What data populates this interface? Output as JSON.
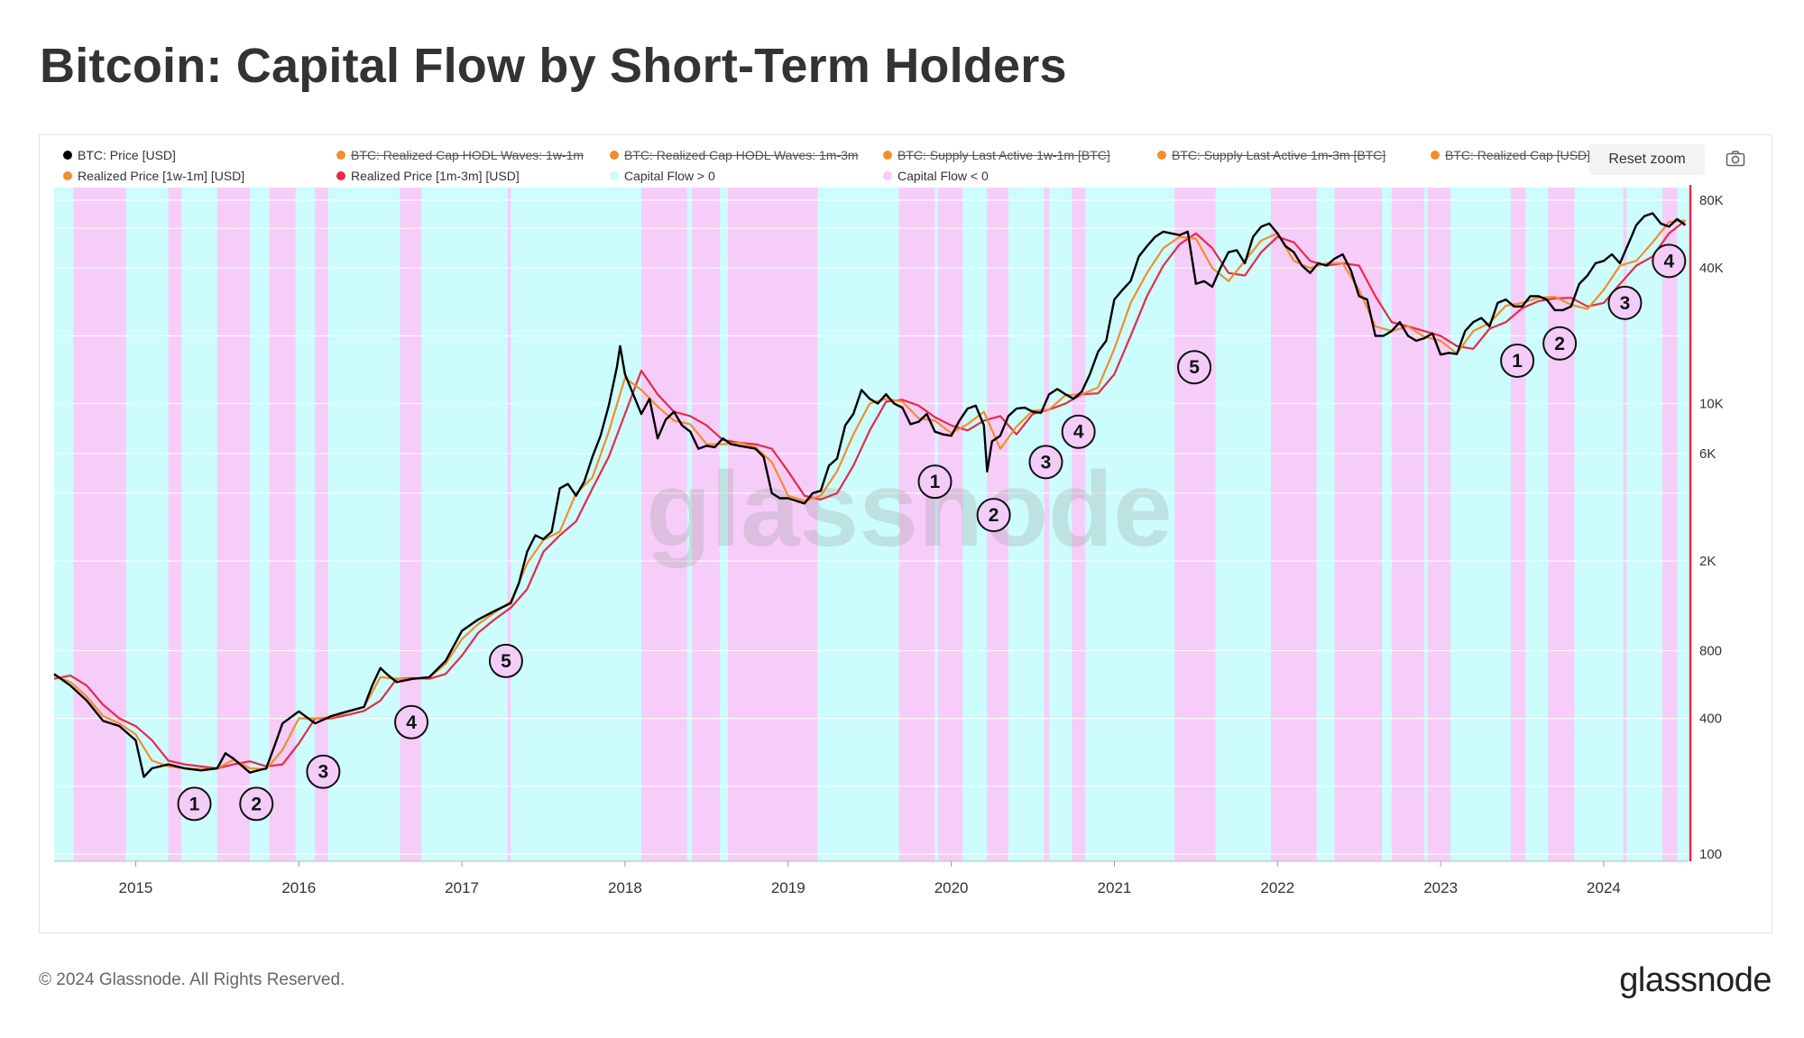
{
  "title": "Bitcoin: Capital Flow by Short-Term Holders",
  "toolbar": {
    "reset_zoom": "Reset zoom",
    "camera_icon": "camera-icon"
  },
  "legend": [
    {
      "label": "BTC: Price [USD]",
      "color": "#000000",
      "active": true
    },
    {
      "label": "BTC: Realized Cap HODL Waves: 1w-1m",
      "color": "#f28e2b",
      "active": false
    },
    {
      "label": "BTC: Realized Cap HODL Waves: 1m-3m",
      "color": "#f28e2b",
      "active": false
    },
    {
      "label": "BTC: Supply Last Active 1w-1m [BTC]",
      "color": "#f28e2b",
      "active": false
    },
    {
      "label": "BTC: Supply Last Active 1m-3m [BTC]",
      "color": "#f28e2b",
      "active": false
    },
    {
      "label": "BTC: Realized Cap [USD]",
      "color": "#f28e2b",
      "active": false
    },
    {
      "label": "Realized Price [1w-1m] [USD]",
      "color": "#f28e2b",
      "active": true
    },
    {
      "label": "Realized Price [1m-3m] [USD]",
      "color": "#e8294a",
      "active": true
    },
    {
      "label": "Capital Flow > 0",
      "color": "#ccfbfb",
      "active": true
    },
    {
      "label": "Capital Flow < 0",
      "color": "#f6ccf8",
      "active": true
    }
  ],
  "watermark": "glassnode",
  "footer": {
    "copyright": "© 2024 Glassnode. All Rights Reserved.",
    "brand": "glassnode"
  },
  "chart_data": {
    "type": "line",
    "title": "Bitcoin: Capital Flow by Short-Term Holders",
    "xlabel": "",
    "ylabel": "",
    "yscale": "log",
    "xlim": [
      2014.5,
      2024.52
    ],
    "ylim": [
      100,
      100000
    ],
    "x_ticks": [
      2015,
      2016,
      2017,
      2018,
      2019,
      2020,
      2021,
      2022,
      2023,
      2024
    ],
    "x_tick_labels": [
      "2015",
      "2016",
      "2017",
      "2018",
      "2019",
      "2020",
      "2021",
      "2022",
      "2023",
      "2024"
    ],
    "y_ticks": [
      100,
      400,
      800,
      2000,
      6000,
      10000,
      40000,
      80000
    ],
    "y_tick_labels": [
      "100",
      "400",
      "800",
      "2K",
      "6K",
      "10K",
      "40K",
      "80K"
    ],
    "series": [
      {
        "name": "BTC: Price [USD]",
        "color": "#000000",
        "x": [
          2014.5,
          2014.6,
          2014.7,
          2014.8,
          2014.9,
          2015.0,
          2015.05,
          2015.1,
          2015.2,
          2015.3,
          2015.4,
          2015.5,
          2015.55,
          2015.6,
          2015.7,
          2015.8,
          2015.85,
          2015.9,
          2016.0,
          2016.1,
          2016.2,
          2016.3,
          2016.4,
          2016.45,
          2016.5,
          2016.55,
          2016.6,
          2016.7,
          2016.8,
          2016.9,
          2017.0,
          2017.1,
          2017.2,
          2017.3,
          2017.35,
          2017.4,
          2017.45,
          2017.5,
          2017.55,
          2017.6,
          2017.65,
          2017.7,
          2017.75,
          2017.8,
          2017.85,
          2017.9,
          2017.95,
          2017.97,
          2018.0,
          2018.05,
          2018.1,
          2018.15,
          2018.2,
          2018.25,
          2018.3,
          2018.35,
          2018.4,
          2018.45,
          2018.5,
          2018.55,
          2018.6,
          2018.65,
          2018.7,
          2018.75,
          2018.8,
          2018.85,
          2018.9,
          2018.95,
          2019.0,
          2019.05,
          2019.1,
          2019.15,
          2019.2,
          2019.25,
          2019.3,
          2019.35,
          2019.4,
          2019.45,
          2019.5,
          2019.55,
          2019.6,
          2019.65,
          2019.7,
          2019.75,
          2019.8,
          2019.85,
          2019.9,
          2019.95,
          2020.0,
          2020.05,
          2020.1,
          2020.15,
          2020.2,
          2020.22,
          2020.25,
          2020.3,
          2020.35,
          2020.4,
          2020.45,
          2020.5,
          2020.55,
          2020.6,
          2020.65,
          2020.7,
          2020.75,
          2020.8,
          2020.85,
          2020.9,
          2020.95,
          2021.0,
          2021.05,
          2021.1,
          2021.15,
          2021.2,
          2021.25,
          2021.3,
          2021.35,
          2021.4,
          2021.45,
          2021.5,
          2021.55,
          2021.6,
          2021.65,
          2021.7,
          2021.75,
          2021.8,
          2021.85,
          2021.9,
          2021.95,
          2022.0,
          2022.05,
          2022.1,
          2022.15,
          2022.2,
          2022.25,
          2022.3,
          2022.35,
          2022.4,
          2022.45,
          2022.5,
          2022.55,
          2022.6,
          2022.65,
          2022.7,
          2022.75,
          2022.8,
          2022.85,
          2022.9,
          2022.95,
          2023.0,
          2023.05,
          2023.1,
          2023.15,
          2023.2,
          2023.25,
          2023.3,
          2023.35,
          2023.4,
          2023.45,
          2023.5,
          2023.55,
          2023.6,
          2023.65,
          2023.7,
          2023.75,
          2023.8,
          2023.85,
          2023.9,
          2023.95,
          2024.0,
          2024.05,
          2024.1,
          2024.15,
          2024.2,
          2024.25,
          2024.3,
          2024.35,
          2024.4,
          2024.45,
          2024.5
        ],
        "values": [
          630,
          560,
          480,
          390,
          370,
          320,
          220,
          240,
          250,
          240,
          235,
          240,
          280,
          265,
          230,
          240,
          300,
          380,
          430,
          380,
          410,
          430,
          450,
          560,
          670,
          620,
          580,
          600,
          610,
          720,
          980,
          1100,
          1200,
          1300,
          1600,
          2200,
          2600,
          2500,
          2700,
          4200,
          4400,
          3900,
          4500,
          5800,
          7200,
          9800,
          14500,
          18000,
          13500,
          11000,
          9000,
          10500,
          7000,
          8500,
          9200,
          8000,
          7500,
          6300,
          6500,
          6400,
          7000,
          6600,
          6500,
          6400,
          6300,
          5800,
          4000,
          3800,
          3800,
          3700,
          3600,
          4000,
          4100,
          5300,
          5700,
          8000,
          9000,
          11500,
          10500,
          10000,
          11000,
          10000,
          9600,
          8100,
          8300,
          9000,
          7500,
          7300,
          7200,
          8400,
          9500,
          9800,
          8000,
          5000,
          6800,
          7200,
          8800,
          9500,
          9600,
          9200,
          9100,
          11000,
          11600,
          11000,
          10500,
          11300,
          13500,
          17000,
          19000,
          29000,
          32000,
          35000,
          45000,
          50000,
          55000,
          58000,
          57000,
          56000,
          58000,
          34000,
          35000,
          33000,
          40000,
          47000,
          48000,
          42000,
          55000,
          61000,
          63000,
          57000,
          50000,
          47000,
          41000,
          38000,
          42000,
          41000,
          44000,
          46000,
          39000,
          30000,
          29000,
          20000,
          20000,
          21000,
          23000,
          20000,
          19000,
          19500,
          20500,
          16500,
          16800,
          16600,
          21000,
          23000,
          24000,
          22000,
          28000,
          29000,
          27000,
          27000,
          30000,
          30000,
          29000,
          26000,
          26000,
          27000,
          34000,
          37000,
          42000,
          43000,
          46000,
          42000,
          51000,
          62000,
          68000,
          70000,
          63000,
          61000,
          66000,
          62000
        ]
      },
      {
        "name": "Realized Price [1w-1m] [USD]",
        "color": "#f28e2b",
        "x": [
          2014.5,
          2014.6,
          2014.7,
          2014.8,
          2014.9,
          2015.0,
          2015.1,
          2015.2,
          2015.3,
          2015.4,
          2015.5,
          2015.6,
          2015.7,
          2015.8,
          2015.9,
          2016.0,
          2016.1,
          2016.2,
          2016.3,
          2016.4,
          2016.5,
          2016.6,
          2016.7,
          2016.8,
          2016.9,
          2017.0,
          2017.1,
          2017.2,
          2017.3,
          2017.4,
          2017.5,
          2017.6,
          2017.7,
          2017.8,
          2017.9,
          2018.0,
          2018.1,
          2018.2,
          2018.3,
          2018.4,
          2018.5,
          2018.6,
          2018.7,
          2018.8,
          2018.9,
          2019.0,
          2019.1,
          2019.2,
          2019.3,
          2019.4,
          2019.5,
          2019.6,
          2019.7,
          2019.8,
          2019.9,
          2020.0,
          2020.1,
          2020.2,
          2020.3,
          2020.4,
          2020.5,
          2020.6,
          2020.7,
          2020.8,
          2020.9,
          2021.0,
          2021.1,
          2021.2,
          2021.3,
          2021.4,
          2021.5,
          2021.6,
          2021.7,
          2021.8,
          2021.9,
          2022.0,
          2022.1,
          2022.2,
          2022.3,
          2022.4,
          2022.5,
          2022.6,
          2022.7,
          2022.8,
          2022.9,
          2023.0,
          2023.1,
          2023.2,
          2023.3,
          2023.4,
          2023.5,
          2023.6,
          2023.7,
          2023.8,
          2023.9,
          2024.0,
          2024.1,
          2024.2,
          2024.3,
          2024.4,
          2024.5
        ],
        "values": [
          620,
          580,
          500,
          410,
          380,
          340,
          260,
          245,
          240,
          238,
          240,
          262,
          240,
          238,
          290,
          400,
          400,
          405,
          428,
          450,
          610,
          600,
          598,
          608,
          700,
          900,
          1050,
          1180,
          1320,
          1950,
          2480,
          2700,
          4000,
          4700,
          7500,
          13000,
          11500,
          9700,
          8400,
          8100,
          6600,
          6600,
          6700,
          6400,
          5500,
          3900,
          3700,
          3900,
          5000,
          7300,
          10000,
          10500,
          10200,
          8600,
          8400,
          7400,
          8100,
          9200,
          6300,
          7900,
          9300,
          9400,
          10900,
          11000,
          11800,
          17500,
          28000,
          38000,
          49000,
          55000,
          54000,
          40000,
          35000,
          43000,
          53000,
          57000,
          43000,
          40000,
          42000,
          42000,
          32000,
          22000,
          21000,
          22000,
          19800,
          19000,
          16700,
          21000,
          22800,
          27200,
          28000,
          29500,
          29800,
          27500,
          26300,
          32000,
          41000,
          43000,
          52000,
          64000,
          65000
        ]
      },
      {
        "name": "Realized Price [1m-3m] [USD]",
        "color": "#e8294a",
        "x": [
          2014.5,
          2014.6,
          2014.7,
          2014.8,
          2014.9,
          2015.0,
          2015.1,
          2015.2,
          2015.3,
          2015.4,
          2015.5,
          2015.6,
          2015.7,
          2015.8,
          2015.9,
          2016.0,
          2016.1,
          2016.2,
          2016.3,
          2016.4,
          2016.5,
          2016.6,
          2016.7,
          2016.8,
          2016.9,
          2017.0,
          2017.1,
          2017.2,
          2017.3,
          2017.4,
          2017.5,
          2017.6,
          2017.7,
          2017.8,
          2017.9,
          2018.0,
          2018.1,
          2018.2,
          2018.3,
          2018.4,
          2018.5,
          2018.6,
          2018.7,
          2018.8,
          2018.9,
          2019.0,
          2019.1,
          2019.2,
          2019.3,
          2019.4,
          2019.5,
          2019.6,
          2019.7,
          2019.8,
          2019.9,
          2020.0,
          2020.1,
          2020.2,
          2020.3,
          2020.4,
          2020.5,
          2020.6,
          2020.7,
          2020.8,
          2020.9,
          2021.0,
          2021.1,
          2021.2,
          2021.3,
          2021.4,
          2021.5,
          2021.6,
          2021.7,
          2021.8,
          2021.9,
          2022.0,
          2022.1,
          2022.2,
          2022.3,
          2022.4,
          2022.5,
          2022.6,
          2022.7,
          2022.8,
          2022.9,
          2023.0,
          2023.1,
          2023.2,
          2023.3,
          2023.4,
          2023.5,
          2023.6,
          2023.7,
          2023.8,
          2023.9,
          2024.0,
          2024.1,
          2024.2,
          2024.3,
          2024.4,
          2024.5
        ],
        "values": [
          600,
          620,
          560,
          460,
          400,
          370,
          320,
          260,
          250,
          245,
          240,
          250,
          258,
          245,
          250,
          310,
          400,
          400,
          415,
          432,
          480,
          600,
          605,
          600,
          630,
          760,
          960,
          1100,
          1240,
          1500,
          2200,
          2600,
          3000,
          4200,
          5800,
          9000,
          14000,
          11000,
          9200,
          8800,
          8000,
          6900,
          6700,
          6600,
          6300,
          5000,
          3900,
          3750,
          4000,
          5300,
          7600,
          10200,
          10400,
          9800,
          8700,
          8000,
          7600,
          8400,
          8800,
          7300,
          9000,
          9400,
          10000,
          11000,
          11100,
          13500,
          20000,
          30000,
          41000,
          51000,
          57000,
          49000,
          38000,
          37000,
          47000,
          55000,
          52000,
          43000,
          41000,
          42000,
          41000,
          30000,
          23000,
          22000,
          21000,
          20000,
          18000,
          17500,
          21500,
          23000,
          26500,
          28500,
          29300,
          29500,
          27000,
          28000,
          34000,
          41000,
          45000,
          57000,
          65000
        ]
      }
    ],
    "capital_flow_negative_bands": [
      [
        2014.62,
        2014.94
      ],
      [
        2015.2,
        2015.28
      ],
      [
        2015.5,
        2015.7
      ],
      [
        2015.82,
        2015.98
      ],
      [
        2016.1,
        2016.18
      ],
      [
        2016.62,
        2016.75
      ],
      [
        2017.28,
        2017.3
      ],
      [
        2018.1,
        2018.38
      ],
      [
        2018.41,
        2018.58
      ],
      [
        2018.63,
        2019.18
      ],
      [
        2019.68,
        2019.9
      ],
      [
        2019.92,
        2020.07
      ],
      [
        2020.22,
        2020.35
      ],
      [
        2020.57,
        2020.6
      ],
      [
        2020.74,
        2020.82
      ],
      [
        2021.37,
        2021.62
      ],
      [
        2021.96,
        2022.24
      ],
      [
        2022.35,
        2022.64
      ],
      [
        2022.7,
        2022.9
      ],
      [
        2022.92,
        2023.06
      ],
      [
        2023.43,
        2023.52
      ],
      [
        2023.66,
        2023.82
      ],
      [
        2024.12,
        2024.14
      ],
      [
        2024.36,
        2024.45
      ]
    ],
    "capital_flow_positive_range": [
      2014.5,
      2024.52
    ],
    "annotations": [
      {
        "label": "1",
        "x": 2015.36,
        "y": 167
      },
      {
        "label": "2",
        "x": 2015.74,
        "y": 167
      },
      {
        "label": "3",
        "x": 2016.15,
        "y": 232
      },
      {
        "label": "4",
        "x": 2016.69,
        "y": 385
      },
      {
        "label": "5",
        "x": 2017.27,
        "y": 720
      },
      {
        "label": "1",
        "x": 2019.9,
        "y": 4500
      },
      {
        "label": "2",
        "x": 2020.26,
        "y": 3200
      },
      {
        "label": "3",
        "x": 2020.58,
        "y": 5500
      },
      {
        "label": "4",
        "x": 2020.78,
        "y": 7500
      },
      {
        "label": "5",
        "x": 2021.49,
        "y": 14500
      },
      {
        "label": "1",
        "x": 2023.47,
        "y": 15500
      },
      {
        "label": "2",
        "x": 2023.73,
        "y": 18500
      },
      {
        "label": "3",
        "x": 2024.13,
        "y": 28000
      },
      {
        "label": "4",
        "x": 2024.4,
        "y": 43000
      }
    ]
  }
}
